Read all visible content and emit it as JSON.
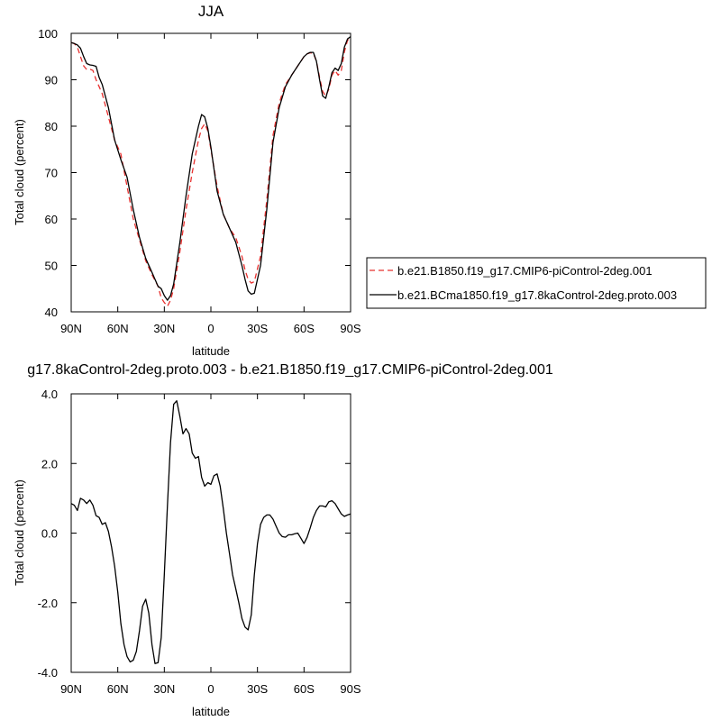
{
  "chart_data": [
    {
      "type": "line",
      "title": "JJA",
      "xlabel": "latitude",
      "ylabel": "Total cloud (percent)",
      "xlim": [
        90,
        -90
      ],
      "ylim": [
        40,
        100
      ],
      "x_ticks": [
        {
          "value": 90,
          "label": "90N"
        },
        {
          "value": 60,
          "label": "60N"
        },
        {
          "value": 30,
          "label": "30N"
        },
        {
          "value": 0,
          "label": "0"
        },
        {
          "value": -30,
          "label": "30S"
        },
        {
          "value": -60,
          "label": "60S"
        },
        {
          "value": -90,
          "label": "90S"
        }
      ],
      "y_ticks": [
        {
          "value": 40,
          "label": "40"
        },
        {
          "value": 50,
          "label": "50"
        },
        {
          "value": 60,
          "label": "60"
        },
        {
          "value": 70,
          "label": "70"
        },
        {
          "value": 80,
          "label": "80"
        },
        {
          "value": 90,
          "label": "90"
        },
        {
          "value": 100,
          "label": "100"
        }
      ],
      "legend_position": "right",
      "series": [
        {
          "name": "b.e21.B1850.f19_g17.CMIP6-piControl-2deg.001",
          "color": "#e8312f",
          "dash": "dashed",
          "x": [
            90,
            88,
            86,
            84,
            82,
            80,
            78,
            76,
            74,
            72,
            70,
            66,
            62,
            58,
            54,
            50,
            46,
            42,
            38,
            34,
            32,
            30,
            28,
            26,
            24,
            20,
            16,
            12,
            8,
            6,
            4,
            2,
            0,
            -4,
            -8,
            -12,
            -16,
            -20,
            -22,
            -24,
            -26,
            -28,
            -32,
            -36,
            -40,
            -44,
            -48,
            -52,
            -56,
            -60,
            -62,
            -64,
            -66,
            -68,
            -70,
            -72,
            -74,
            -76,
            -78,
            -80,
            -82,
            -84,
            -86,
            -88,
            -90
          ],
          "y": [
            98,
            97.8,
            97,
            95,
            93,
            92.2,
            92.3,
            92,
            90,
            88.5,
            87,
            82,
            77,
            74,
            67,
            60,
            55.5,
            51,
            48,
            45.5,
            43,
            42,
            41.2,
            42.5,
            45,
            53,
            62,
            70,
            77,
            79.5,
            80.5,
            79,
            75,
            67,
            61,
            58,
            56,
            52,
            49,
            47,
            46.2,
            46.5,
            52,
            64,
            78,
            85,
            89,
            91,
            93,
            95,
            95.6,
            95.8,
            95.7,
            94,
            90.5,
            87.5,
            86.5,
            88,
            91,
            92,
            91,
            92,
            96,
            98.5,
            99
          ]
        },
        {
          "name": "b.e21.BCma1850.f19_g17.8kaControl-2deg.proto.003",
          "color": "#000000",
          "dash": "solid",
          "x": [
            90,
            88,
            86,
            84,
            82,
            80,
            78,
            76,
            74,
            72,
            70,
            66,
            62,
            58,
            54,
            50,
            46,
            42,
            38,
            34,
            32,
            30,
            28,
            26,
            24,
            20,
            16,
            12,
            8,
            6,
            4,
            2,
            0,
            -4,
            -8,
            -12,
            -16,
            -20,
            -22,
            -24,
            -26,
            -28,
            -32,
            -36,
            -40,
            -44,
            -48,
            -52,
            -56,
            -60,
            -62,
            -64,
            -66,
            -68,
            -70,
            -72,
            -74,
            -76,
            -78,
            -80,
            -82,
            -84,
            -86,
            -88,
            -90
          ],
          "y": [
            98,
            97.8,
            97.5,
            96.8,
            95,
            93.5,
            93.2,
            93.1,
            92.9,
            90.5,
            89,
            84,
            77,
            72.8,
            69,
            62,
            56,
            51.5,
            48.5,
            45.5,
            45,
            43.5,
            42.5,
            43.5,
            46,
            55,
            65,
            74,
            80,
            82.5,
            82,
            79.5,
            75.5,
            66,
            61,
            58,
            55,
            50,
            47,
            44.5,
            43.8,
            44,
            50,
            62,
            76.5,
            84,
            88.5,
            91,
            93,
            95,
            95.6,
            95.9,
            95.9,
            94,
            90,
            86.5,
            86,
            88.5,
            91.5,
            92.5,
            92,
            93.5,
            97,
            98.8,
            99.3
          ]
        }
      ]
    },
    {
      "type": "line",
      "title": "g17.8kaControl-2deg.proto.003 - b.e21.B1850.f19_g17.CMIP6-piControl-2deg.001",
      "xlabel": "latitude",
      "ylabel": "Total cloud (percent)",
      "xlim": [
        90,
        -90
      ],
      "ylim": [
        -4,
        4
      ],
      "x_ticks": [
        {
          "value": 90,
          "label": "90N"
        },
        {
          "value": 60,
          "label": "60N"
        },
        {
          "value": 30,
          "label": "30N"
        },
        {
          "value": 0,
          "label": "0"
        },
        {
          "value": -30,
          "label": "30S"
        },
        {
          "value": -60,
          "label": "60S"
        },
        {
          "value": -90,
          "label": "90S"
        }
      ],
      "y_ticks": [
        {
          "value": -4,
          "label": "-4.0"
        },
        {
          "value": -2,
          "label": "-2.0"
        },
        {
          "value": 0,
          "label": "0.0"
        },
        {
          "value": 2,
          "label": "2.0"
        },
        {
          "value": 4,
          "label": "4.0"
        }
      ],
      "series": [
        {
          "color": "#000000",
          "dash": "solid",
          "x": [
            90,
            88,
            86,
            84,
            82,
            80,
            78,
            76,
            74,
            72,
            70,
            68,
            66,
            64,
            62,
            60,
            58,
            56,
            54,
            52,
            50,
            48,
            46,
            44,
            42,
            40,
            38,
            36,
            34,
            32,
            30,
            28,
            26,
            24,
            22,
            20,
            18,
            16,
            14,
            12,
            10,
            8,
            6,
            4,
            2,
            0,
            -2,
            -4,
            -6,
            -8,
            -10,
            -12,
            -14,
            -16,
            -18,
            -20,
            -22,
            -24,
            -26,
            -28,
            -30,
            -32,
            -34,
            -36,
            -38,
            -40,
            -42,
            -44,
            -46,
            -48,
            -50,
            -52,
            -54,
            -56,
            -58,
            -60,
            -62,
            -64,
            -66,
            -68,
            -70,
            -72,
            -74,
            -76,
            -78,
            -80,
            -82,
            -84,
            -86,
            -88,
            -90
          ],
          "y": [
            0.85,
            0.8,
            0.65,
            1.0,
            0.95,
            0.85,
            0.95,
            0.8,
            0.5,
            0.45,
            0.25,
            0.3,
            0.05,
            -0.4,
            -0.95,
            -1.7,
            -2.6,
            -3.2,
            -3.55,
            -3.7,
            -3.65,
            -3.4,
            -2.8,
            -2.1,
            -1.9,
            -2.3,
            -3.2,
            -3.75,
            -3.72,
            -3.0,
            -1.2,
            0.8,
            2.6,
            3.7,
            3.8,
            3.35,
            2.85,
            3.0,
            2.85,
            2.3,
            2.15,
            2.2,
            1.6,
            1.35,
            1.45,
            1.4,
            1.65,
            1.7,
            1.35,
            0.7,
            0.0,
            -0.6,
            -1.2,
            -1.6,
            -2.0,
            -2.45,
            -2.7,
            -2.78,
            -2.35,
            -1.2,
            -0.3,
            0.25,
            0.45,
            0.52,
            0.52,
            0.4,
            0.2,
            0.0,
            -0.1,
            -0.12,
            -0.05,
            -0.05,
            -0.02,
            0.0,
            -0.15,
            -0.3,
            -0.12,
            0.15,
            0.45,
            0.65,
            0.78,
            0.78,
            0.75,
            0.9,
            0.93,
            0.85,
            0.7,
            0.55,
            0.48,
            0.52,
            0.55
          ]
        }
      ]
    }
  ]
}
